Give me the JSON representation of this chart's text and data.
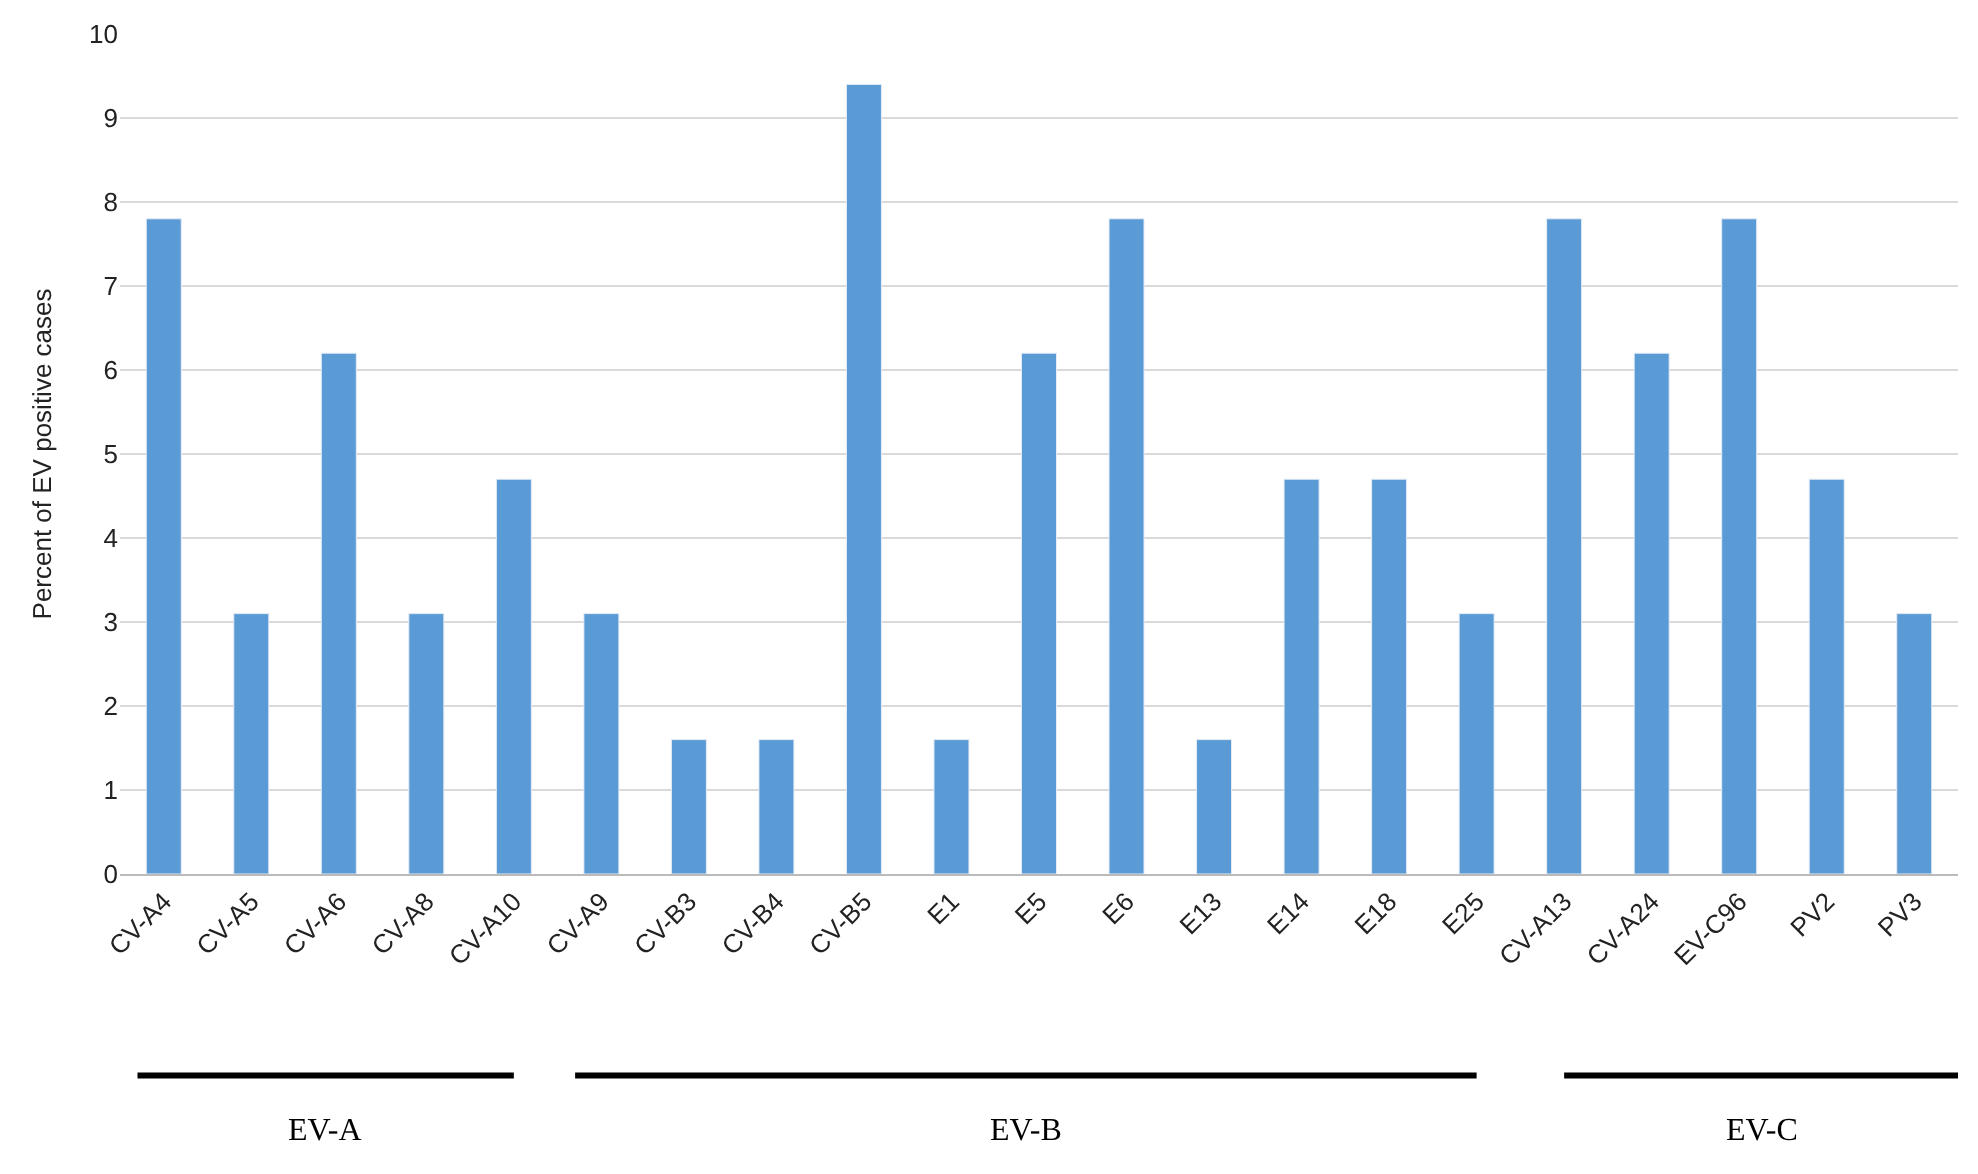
{
  "chart_data": {
    "type": "bar",
    "ylabel": "Percent of EV positive cases",
    "categories": [
      "CV-A4",
      "CV-A5",
      "CV-A6",
      "CV-A8",
      "CV-A10",
      "CV-A9",
      "CV-B3",
      "CV-B4",
      "CV-B5",
      "E1",
      "E5",
      "E6",
      "E13",
      "E14",
      "E18",
      "E25",
      "CV-A13",
      "CV-A24",
      "EV-C96",
      "PV2",
      "PV3"
    ],
    "values": [
      7.8,
      3.1,
      6.2,
      3.1,
      4.7,
      3.1,
      1.6,
      1.6,
      9.4,
      1.6,
      6.2,
      7.8,
      1.6,
      4.7,
      4.7,
      3.1,
      7.8,
      6.2,
      7.8,
      4.7,
      3.1
    ],
    "color": "#5b9bd5",
    "ylim": [
      0,
      10
    ],
    "yticks": [
      0,
      1,
      2,
      3,
      4,
      5,
      6,
      7,
      8,
      9,
      10
    ],
    "grid": "y",
    "legend": false,
    "annotations": [
      "EV-A",
      "EV-B",
      "EV-C"
    ]
  }
}
